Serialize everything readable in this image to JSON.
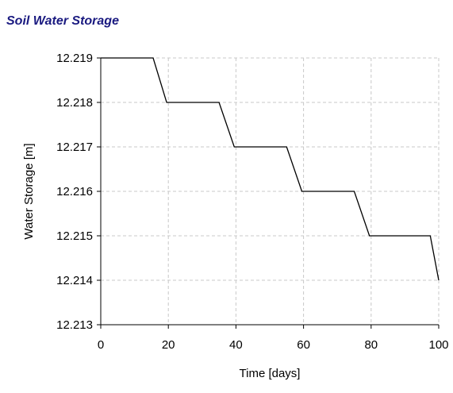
{
  "chart_data": {
    "type": "line",
    "title": "Soil Water Storage",
    "xlabel": "Time [days]",
    "ylabel": "Water Storage [m]",
    "xlim": [
      0,
      100
    ],
    "ylim": [
      12.213,
      12.219
    ],
    "x_ticks": [
      "0",
      "20",
      "40",
      "60",
      "80",
      "100"
    ],
    "y_ticks": [
      "12.219",
      "12.218",
      "12.217",
      "12.216",
      "12.215",
      "12.214",
      "12.213"
    ],
    "grid": true,
    "series": [
      {
        "color": "#000000",
        "x": [
          0,
          15.5,
          19.5,
          35,
          39.5,
          55,
          59.5,
          75,
          79.5,
          97.5,
          100
        ],
        "y": [
          12.219,
          12.219,
          12.218,
          12.218,
          12.217,
          12.217,
          12.216,
          12.216,
          12.215,
          12.215,
          12.214
        ]
      }
    ]
  }
}
